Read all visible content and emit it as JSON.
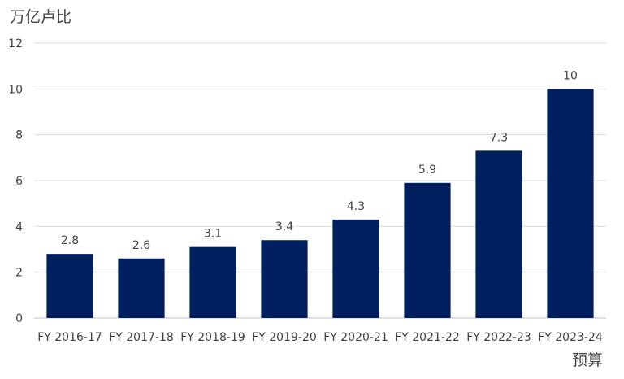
{
  "chart_data": {
    "type": "bar",
    "y_unit_label": "万亿卢比",
    "x_title": "预算",
    "categories": [
      "FY 2016-17",
      "FY 2017-18",
      "FY 2018-19",
      "FY 2019-20",
      "FY 2020-21",
      "FY 2021-22",
      "FY 2022-23",
      "FY 2023-24"
    ],
    "values": [
      2.8,
      2.6,
      3.1,
      3.4,
      4.3,
      5.9,
      7.3,
      10
    ],
    "value_labels": [
      "2.8",
      "2.6",
      "3.1",
      "3.4",
      "4.3",
      "5.9",
      "7.3",
      "10"
    ],
    "ylim": [
      0,
      12
    ],
    "yticks": [
      0,
      2,
      4,
      6,
      8,
      10,
      12
    ],
    "grid": true,
    "bar_color": "#002060",
    "legend": "none"
  }
}
